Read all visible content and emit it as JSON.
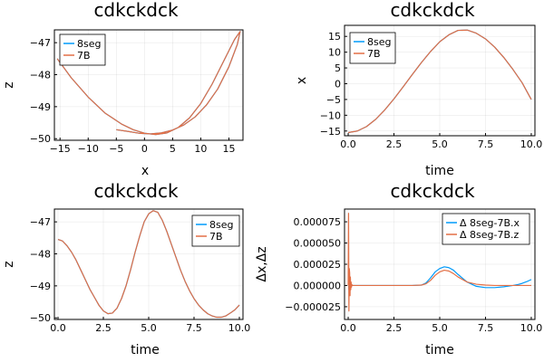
{
  "colors": {
    "series1": "#009AFA",
    "series2": "#E26F46"
  },
  "chart_data": [
    {
      "type": "line",
      "title": "cdkckdck",
      "xlabel": "x",
      "ylabel": "z",
      "xlim": [
        -16,
        17.5
      ],
      "ylim": [
        -50.05,
        -46.6
      ],
      "xticks": [
        -15,
        -10,
        -5,
        0,
        5,
        10,
        15
      ],
      "xtick_labels": [
        "−15",
        "−10",
        "−5",
        "0",
        "5",
        "10",
        "15"
      ],
      "yticks": [
        -50,
        -49,
        -48,
        -47
      ],
      "ytick_labels": [
        "−50",
        "−49",
        "−48",
        "−47"
      ],
      "grid": true,
      "legend": "top-left",
      "series": [
        {
          "name": "8seg",
          "x": [
            -15.5,
            -13,
            -10,
            -7,
            -4,
            -2,
            0,
            2,
            4,
            6,
            8,
            10,
            12,
            14,
            16,
            17,
            16.5,
            15,
            13,
            11,
            9,
            7,
            5,
            3,
            1,
            -1,
            -3,
            -5
          ],
          "y": [
            -47.5,
            -48.1,
            -48.7,
            -49.2,
            -49.55,
            -49.72,
            -49.83,
            -49.87,
            -49.82,
            -49.65,
            -49.35,
            -48.9,
            -48.3,
            -47.6,
            -46.9,
            -46.65,
            -47.05,
            -47.75,
            -48.45,
            -48.95,
            -49.32,
            -49.57,
            -49.73,
            -49.82,
            -49.85,
            -49.83,
            -49.77,
            -49.72
          ]
        },
        {
          "name": "7B",
          "x": [
            -15.5,
            -13,
            -10,
            -7,
            -4,
            -2,
            0,
            2,
            4,
            6,
            8,
            10,
            12,
            14,
            16,
            17,
            16.5,
            15,
            13,
            11,
            9,
            7,
            5,
            3,
            1,
            -1,
            -3,
            -5
          ],
          "y": [
            -47.5,
            -48.1,
            -48.7,
            -49.2,
            -49.55,
            -49.72,
            -49.83,
            -49.87,
            -49.82,
            -49.65,
            -49.35,
            -48.9,
            -48.3,
            -47.6,
            -46.9,
            -46.65,
            -47.05,
            -47.75,
            -48.45,
            -48.95,
            -49.32,
            -49.57,
            -49.73,
            -49.82,
            -49.85,
            -49.83,
            -49.77,
            -49.72
          ]
        }
      ]
    },
    {
      "type": "line",
      "title": "cdkckdck",
      "xlabel": "time",
      "ylabel": "x",
      "xlim": [
        -0.2,
        10.2
      ],
      "ylim": [
        -16.5,
        18.5
      ],
      "xticks": [
        0,
        2.5,
        5,
        7.5,
        10
      ],
      "xtick_labels": [
        "0.0",
        "2.5",
        "5.0",
        "7.5",
        "10.0"
      ],
      "yticks": [
        -15,
        -10,
        -5,
        0,
        5,
        10,
        15
      ],
      "ytick_labels": [
        "−15",
        "−10",
        "−5",
        "0",
        "5",
        "10",
        "15"
      ],
      "grid": true,
      "legend": "top-left",
      "series": [
        {
          "name": "8seg",
          "x": [
            0,
            0.5,
            1,
            1.5,
            2,
            2.5,
            3,
            3.5,
            4,
            4.5,
            5,
            5.5,
            6,
            6.5,
            7,
            7.5,
            8,
            8.5,
            9,
            9.5,
            10
          ],
          "y": [
            -15.5,
            -15.0,
            -13.6,
            -11.3,
            -8.3,
            -4.8,
            -1.0,
            2.9,
            6.7,
            10.2,
            13.3,
            15.5,
            16.9,
            17.0,
            16.0,
            14.2,
            11.6,
            8.3,
            4.5,
            0.3,
            -5.0
          ]
        },
        {
          "name": "7B",
          "x": [
            0,
            0.5,
            1,
            1.5,
            2,
            2.5,
            3,
            3.5,
            4,
            4.5,
            5,
            5.5,
            6,
            6.5,
            7,
            7.5,
            8,
            8.5,
            9,
            9.5,
            10
          ],
          "y": [
            -15.5,
            -15.0,
            -13.6,
            -11.3,
            -8.3,
            -4.8,
            -1.0,
            2.9,
            6.7,
            10.2,
            13.3,
            15.5,
            16.9,
            17.0,
            16.0,
            14.2,
            11.6,
            8.3,
            4.5,
            0.3,
            -5.0
          ]
        }
      ]
    },
    {
      "type": "line",
      "title": "cdkckdck",
      "xlabel": "time",
      "ylabel": "z",
      "xlim": [
        -0.2,
        10.2
      ],
      "ylim": [
        -50.05,
        -46.6
      ],
      "xticks": [
        0,
        2.5,
        5,
        7.5,
        10
      ],
      "xtick_labels": [
        "0.0",
        "2.5",
        "5.0",
        "7.5",
        "10.0"
      ],
      "yticks": [
        -50,
        -49,
        -48,
        -47
      ],
      "ytick_labels": [
        "−50",
        "−49",
        "−48",
        "−47"
      ],
      "grid": true,
      "legend": "top-right",
      "series": [
        {
          "name": "8seg",
          "x": [
            0,
            0.25,
            0.5,
            0.75,
            1,
            1.25,
            1.5,
            1.75,
            2,
            2.25,
            2.5,
            2.75,
            3,
            3.25,
            3.5,
            3.75,
            4,
            4.25,
            4.5,
            4.75,
            5,
            5.25,
            5.5,
            5.75,
            6,
            6.25,
            6.5,
            6.75,
            7,
            7.25,
            7.5,
            7.75,
            8,
            8.25,
            8.5,
            8.75,
            9,
            9.25,
            9.5,
            9.75,
            10
          ],
          "y": [
            -47.55,
            -47.6,
            -47.75,
            -47.95,
            -48.2,
            -48.5,
            -48.8,
            -49.1,
            -49.35,
            -49.6,
            -49.78,
            -49.87,
            -49.85,
            -49.7,
            -49.4,
            -49.0,
            -48.5,
            -47.95,
            -47.45,
            -47.0,
            -46.75,
            -46.65,
            -46.7,
            -46.95,
            -47.3,
            -47.7,
            -48.1,
            -48.5,
            -48.85,
            -49.15,
            -49.4,
            -49.6,
            -49.75,
            -49.87,
            -49.94,
            -49.98,
            -49.98,
            -49.94,
            -49.85,
            -49.75,
            -49.6
          ]
        },
        {
          "name": "7B",
          "x": [
            0,
            0.25,
            0.5,
            0.75,
            1,
            1.25,
            1.5,
            1.75,
            2,
            2.25,
            2.5,
            2.75,
            3,
            3.25,
            3.5,
            3.75,
            4,
            4.25,
            4.5,
            4.75,
            5,
            5.25,
            5.5,
            5.75,
            6,
            6.25,
            6.5,
            6.75,
            7,
            7.25,
            7.5,
            7.75,
            8,
            8.25,
            8.5,
            8.75,
            9,
            9.25,
            9.5,
            9.75,
            10
          ],
          "y": [
            -47.55,
            -47.6,
            -47.75,
            -47.95,
            -48.2,
            -48.5,
            -48.8,
            -49.1,
            -49.35,
            -49.6,
            -49.78,
            -49.87,
            -49.85,
            -49.7,
            -49.4,
            -49.0,
            -48.5,
            -47.95,
            -47.45,
            -47.0,
            -46.75,
            -46.65,
            -46.7,
            -46.95,
            -47.3,
            -47.7,
            -48.1,
            -48.5,
            -48.85,
            -49.15,
            -49.4,
            -49.6,
            -49.75,
            -49.87,
            -49.94,
            -49.98,
            -49.98,
            -49.94,
            -49.85,
            -49.75,
            -49.6
          ]
        }
      ]
    },
    {
      "type": "line",
      "title": "cdkckdck",
      "xlabel": "time",
      "ylabel": "Δx,Δz",
      "xlim": [
        -0.2,
        10.2
      ],
      "ylim": [
        -4e-05,
        9e-05
      ],
      "xticks": [
        0,
        2.5,
        5,
        7.5,
        10
      ],
      "xtick_labels": [
        "0.0",
        "2.5",
        "5.0",
        "7.5",
        "10.0"
      ],
      "yticks": [
        -2.5e-05,
        0,
        2.5e-05,
        5e-05,
        7.5e-05
      ],
      "ytick_labels": [
        "−0.000025",
        "0.000000",
        "0.000025",
        "0.000050",
        "0.000075"
      ],
      "grid": true,
      "legend": "top-right",
      "series": [
        {
          "name": "Δ 8seg-7B.x",
          "x": [
            0,
            0.02,
            0.04,
            0.06,
            0.08,
            0.1,
            0.12,
            0.14,
            0.16,
            0.18,
            0.2,
            0.25,
            0.3,
            0.4,
            0.6,
            1,
            2,
            3,
            3.5,
            4,
            4.25,
            4.5,
            4.75,
            5,
            5.25,
            5.5,
            5.75,
            6,
            6.5,
            7,
            7.5,
            8,
            8.5,
            9,
            9.25,
            9.5,
            9.75,
            10
          ],
          "y": [
            0,
            5e-06,
            -5e-06,
            1.2e-05,
            -8e-06,
            6e-06,
            -3e-06,
            2e-06,
            -1e-06,
            5e-07,
            0,
            0,
            0,
            0,
            0,
            0,
            0,
            0,
            0,
            5e-07,
            3e-06,
            9e-06,
            1.6e-05,
            2e-05,
            2.2e-05,
            2.1e-05,
            1.8e-05,
            1.3e-05,
            4e-06,
            -1e-06,
            -2.5e-06,
            -2.5e-06,
            -1.5e-06,
            0,
            1e-06,
            2.5e-06,
            4.5e-06,
            7e-06
          ]
        },
        {
          "name": "Δ 8seg-7B.z",
          "x": [
            0,
            0.02,
            0.04,
            0.06,
            0.08,
            0.1,
            0.12,
            0.14,
            0.16,
            0.18,
            0.2,
            0.25,
            0.3,
            0.4,
            0.6,
            1,
            2,
            3,
            3.5,
            4,
            4.25,
            4.5,
            4.75,
            5,
            5.25,
            5.5,
            5.75,
            6,
            6.5,
            7,
            7.5,
            8,
            8.5,
            9,
            9.5,
            10
          ],
          "y": [
            0,
            8.5e-05,
            -3e-05,
            2e-05,
            1.5e-05,
            -1.2e-05,
            1e-05,
            -5e-06,
            4e-06,
            -2e-06,
            1e-06,
            0,
            0,
            0,
            0,
            0,
            0,
            0,
            0,
            5e-07,
            2e-06,
            6e-06,
            1.2e-05,
            1.6e-05,
            1.8e-05,
            1.7e-05,
            1.4e-05,
            1e-05,
            4e-06,
            1.5e-06,
            5e-07,
            0,
            0,
            0,
            0,
            0
          ]
        }
      ]
    }
  ]
}
